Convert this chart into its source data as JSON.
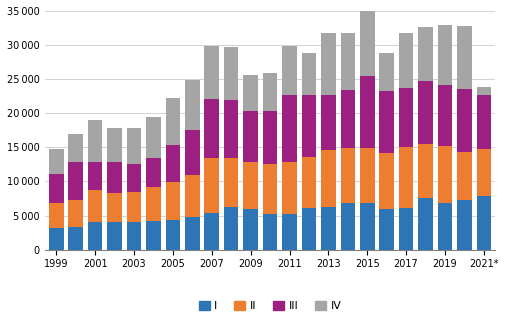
{
  "years": [
    1999,
    2000,
    2001,
    2002,
    2003,
    2004,
    2005,
    2006,
    2007,
    2008,
    2009,
    2010,
    2011,
    2012,
    2013,
    2014,
    2015,
    2016,
    2017,
    2018,
    2019,
    2020,
    2021
  ],
  "Q1": [
    3100,
    3300,
    4100,
    4000,
    4000,
    4200,
    4300,
    4800,
    5300,
    6300,
    6000,
    5200,
    5200,
    6100,
    6200,
    6900,
    6800,
    6000,
    6100,
    7500,
    6800,
    7300,
    7800
  ],
  "Q2": [
    3700,
    4000,
    4600,
    4300,
    4500,
    5000,
    5600,
    6200,
    8200,
    7100,
    6900,
    7400,
    7700,
    7500,
    8400,
    8000,
    8100,
    8200,
    9000,
    8000,
    8400,
    7000,
    7000
  ],
  "Q3": [
    4300,
    5500,
    4200,
    4500,
    4100,
    4200,
    5500,
    6500,
    8600,
    8600,
    7400,
    7700,
    9800,
    9000,
    8000,
    8500,
    10600,
    9000,
    8600,
    9200,
    9000,
    9300,
    7900
  ],
  "Q4": [
    3600,
    4200,
    6100,
    5100,
    5300,
    6100,
    6900,
    7400,
    7800,
    7700,
    5300,
    5600,
    7100,
    6300,
    9100,
    8300,
    9600,
    5700,
    8100,
    8000,
    8700,
    9200,
    1200
  ],
  "colors": [
    "#2e75b6",
    "#ed7d31",
    "#9c1f82",
    "#a5a5a5"
  ],
  "quarter_labels": [
    "I",
    "II",
    "III",
    "IV"
  ],
  "ylim": [
    0,
    35000
  ],
  "yticks": [
    0,
    5000,
    10000,
    15000,
    20000,
    25000,
    30000,
    35000
  ],
  "background_color": "#ffffff"
}
